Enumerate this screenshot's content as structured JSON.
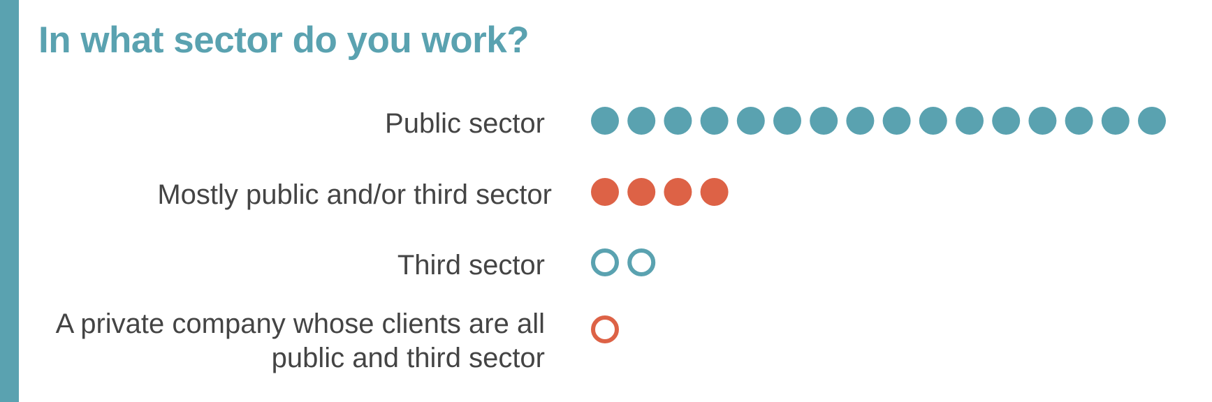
{
  "colors": {
    "teal": "#5aa2b0",
    "orange": "#dd6246",
    "label_text": "#444444"
  },
  "chart_data": {
    "type": "dot-plot",
    "title": "In what sector do you work?",
    "categories": [
      "Public sector",
      "Mostly public and/or third sector",
      "Third sector",
      "A private company whose clients are all public and third sector"
    ],
    "values": [
      16,
      4,
      2,
      1
    ],
    "series": [
      {
        "label": "Public sector",
        "value": 16,
        "color": "#5aa2b0",
        "style": "filled"
      },
      {
        "label": "Mostly public and/or third sector",
        "value": 4,
        "color": "#dd6246",
        "style": "filled"
      },
      {
        "label": "Third sector",
        "value": 2,
        "color": "#5aa2b0",
        "style": "outline"
      },
      {
        "label": "A private company whose clients are all public and third sector",
        "value": 1,
        "color": "#dd6246",
        "style": "outline"
      }
    ]
  }
}
